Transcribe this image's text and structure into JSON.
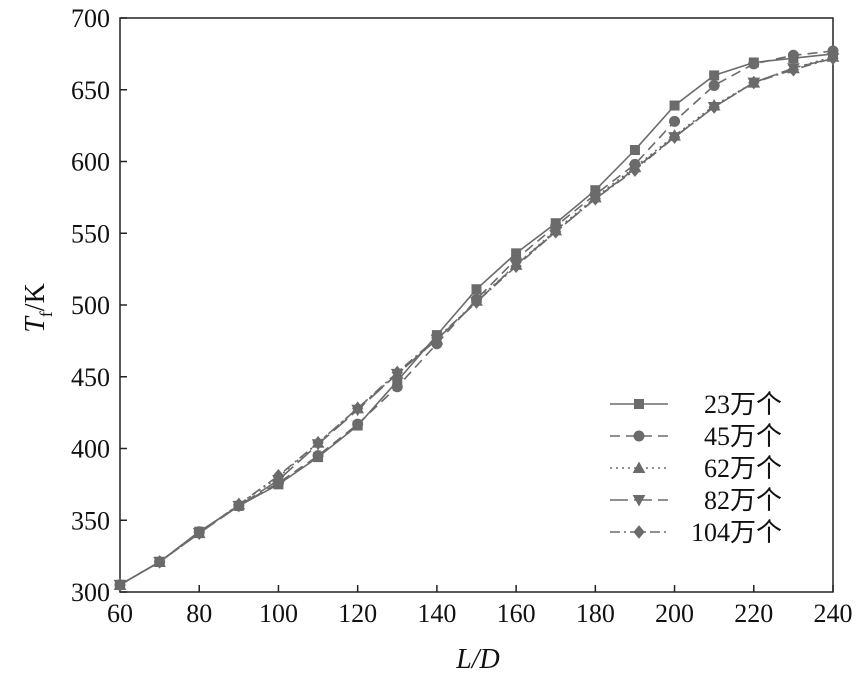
{
  "chart_data": {
    "type": "line",
    "xlabel": "L/D",
    "ylabel_main": "T",
    "ylabel_sub": "f",
    "ylabel_unit": "/K",
    "xlim": [
      60,
      240
    ],
    "ylim": [
      300,
      700
    ],
    "xticks": [
      60,
      80,
      100,
      120,
      140,
      160,
      180,
      200,
      220,
      240
    ],
    "yticks": [
      300,
      350,
      400,
      450,
      500,
      550,
      600,
      650,
      700
    ],
    "grid": false,
    "legend_position": "bottom-right",
    "color": "#6b6b6b",
    "series": [
      {
        "name": "23万个",
        "marker": "square",
        "dash": "solid",
        "x": [
          60,
          70,
          80,
          90,
          100,
          110,
          120,
          130,
          140,
          150,
          160,
          170,
          180,
          190,
          200,
          210,
          220,
          230,
          240
        ],
        "y": [
          305,
          321,
          342,
          360,
          375,
          394,
          416,
          447,
          479,
          511,
          536,
          557,
          580,
          608,
          639,
          660,
          669,
          672,
          675
        ]
      },
      {
        "name": "45万个",
        "marker": "circle",
        "dash": "dash",
        "x": [
          60,
          70,
          80,
          90,
          100,
          110,
          120,
          130,
          140,
          150,
          160,
          170,
          180,
          190,
          200,
          210,
          220,
          230,
          240
        ],
        "y": [
          305,
          321,
          342,
          360,
          376,
          395,
          417,
          443,
          473,
          504,
          532,
          555,
          577,
          598,
          628,
          653,
          668,
          674,
          677
        ]
      },
      {
        "name": "62万个",
        "marker": "triangle-up",
        "dash": "dot",
        "x": [
          60,
          70,
          80,
          90,
          100,
          110,
          120,
          130,
          140,
          150,
          160,
          170,
          180,
          190,
          200,
          210,
          220,
          230,
          240
        ],
        "y": [
          305,
          321,
          341,
          361,
          380,
          404,
          428,
          452,
          476,
          503,
          528,
          552,
          575,
          596,
          618,
          639,
          655,
          665,
          673
        ]
      },
      {
        "name": "82万个",
        "marker": "triangle-down",
        "dash": "longdash",
        "x": [
          60,
          70,
          80,
          90,
          100,
          110,
          120,
          130,
          140,
          150,
          160,
          170,
          180,
          190,
          200,
          210,
          220,
          230,
          240
        ],
        "y": [
          305,
          321,
          341,
          360,
          378,
          403,
          427,
          452,
          476,
          502,
          528,
          551,
          574,
          595,
          617,
          638,
          655,
          665,
          672
        ]
      },
      {
        "name": "104万个",
        "marker": "diamond",
        "dash": "dashdot",
        "x": [
          60,
          70,
          80,
          90,
          100,
          110,
          120,
          130,
          140,
          150,
          160,
          170,
          180,
          190,
          200,
          210,
          220,
          230,
          240
        ],
        "y": [
          305,
          321,
          341,
          361,
          381,
          404,
          428,
          453,
          477,
          502,
          527,
          551,
          574,
          594,
          617,
          638,
          655,
          664,
          672
        ]
      }
    ]
  }
}
